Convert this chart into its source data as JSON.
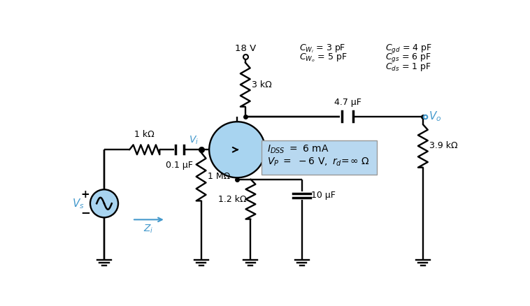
{
  "bg_color": "#ffffff",
  "light_blue": "#a8d4f0",
  "blue_text": "#4499cc",
  "box_fill": "#b8d8f0",
  "black": "#000000",
  "vdd": "18 V",
  "r_drain": "3 kΩ",
  "r_source": "1.2 kΩ",
  "r_gate": "1 MΩ",
  "r_in": "1 kΩ",
  "r_load": "3.9 kΩ",
  "c_in": "0.1 μF",
  "c_bypass": "10 μF",
  "c_out": "4.7 μF"
}
